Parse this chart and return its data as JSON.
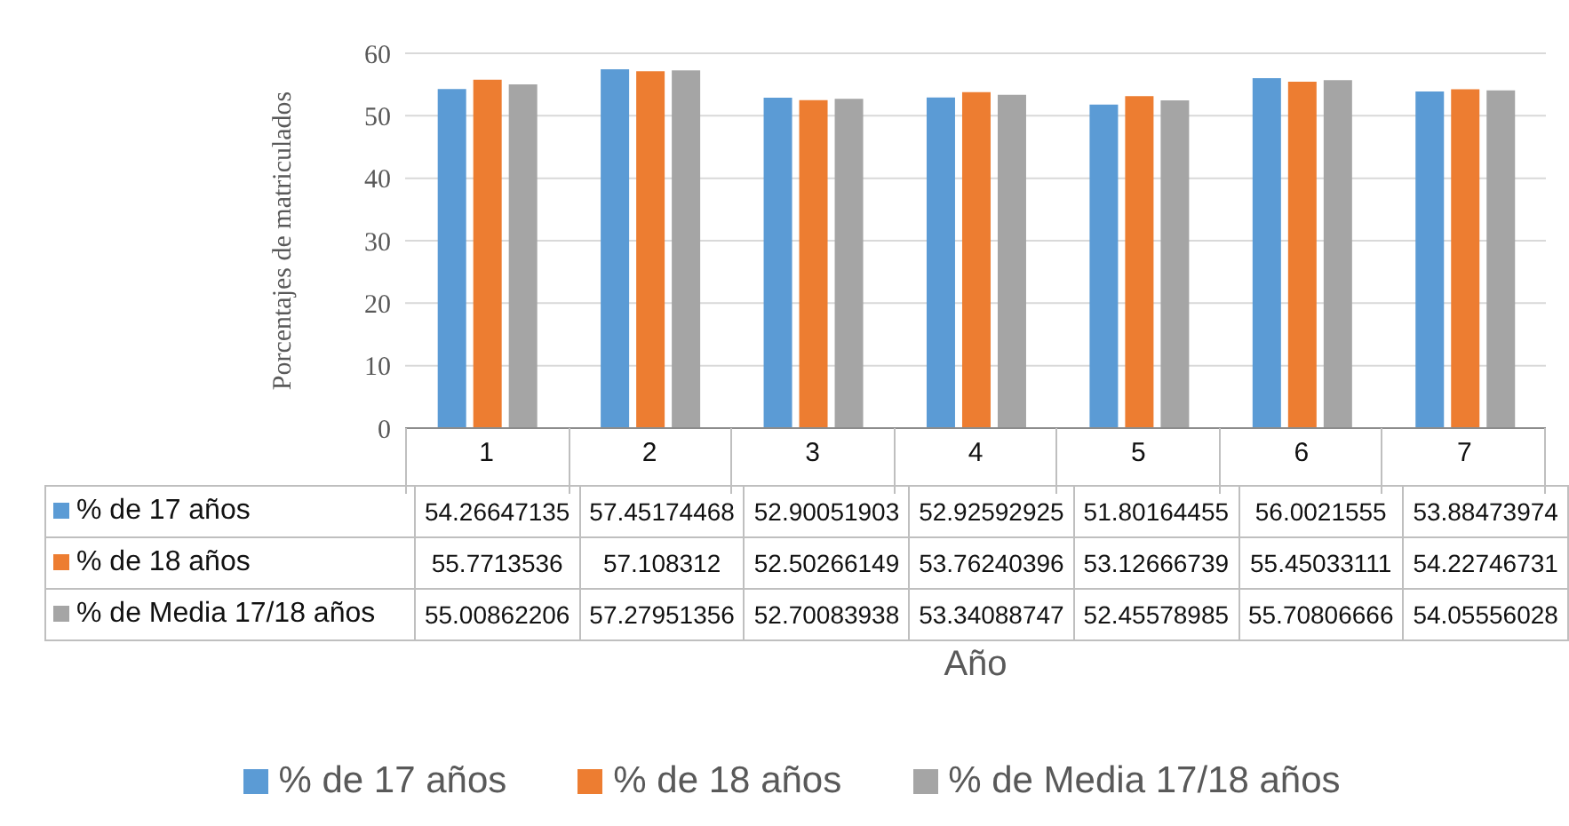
{
  "chart_data": {
    "type": "bar",
    "xlabel": "Año",
    "ylabel": "Porcentajes de matriculados",
    "categories": [
      "1",
      "2",
      "3",
      "4",
      "5",
      "6",
      "7"
    ],
    "series": [
      {
        "name": "% de 17 años",
        "color": "#5b9bd5",
        "values": [
          54.26647135,
          57.45174468,
          52.90051903,
          52.92592925,
          51.80164455,
          56.0021555,
          53.88473974
        ]
      },
      {
        "name": "% de 18 años",
        "color": "#ed7d31",
        "values": [
          55.7713536,
          57.108312,
          52.50266149,
          53.76240396,
          53.12666739,
          55.45033111,
          54.22746731
        ]
      },
      {
        "name": "% de Media 17/18 años",
        "color": "#a5a5a5",
        "values": [
          55.00862206,
          57.27951356,
          52.70083938,
          53.34088747,
          52.45578985,
          55.70806666,
          54.05556028
        ]
      }
    ],
    "ylim": [
      0,
      60
    ],
    "yticks": [
      0,
      10,
      20,
      30,
      40,
      50,
      60
    ],
    "grid": "y",
    "legend": "bottom",
    "data_labels": true
  }
}
